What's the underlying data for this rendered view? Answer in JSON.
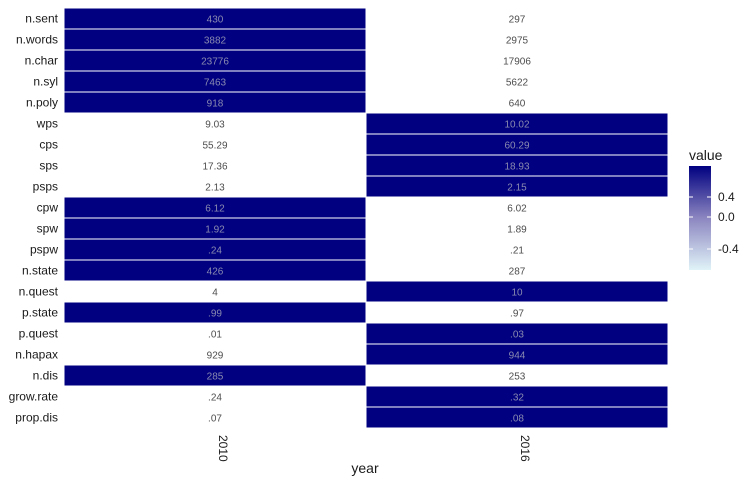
{
  "chart_data": {
    "type": "heatmap",
    "xlabel": "year",
    "ylabel": "",
    "columns": [
      "2010",
      "2016"
    ],
    "rows": [
      {
        "label": "n.sent",
        "values": [
          "430",
          "297"
        ],
        "highlight": [
          true,
          false
        ]
      },
      {
        "label": "n.words",
        "values": [
          "3882",
          "2975"
        ],
        "highlight": [
          true,
          false
        ]
      },
      {
        "label": "n.char",
        "values": [
          "23776",
          "17906"
        ],
        "highlight": [
          true,
          false
        ]
      },
      {
        "label": "n.syl",
        "values": [
          "7463",
          "5622"
        ],
        "highlight": [
          true,
          false
        ]
      },
      {
        "label": "n.poly",
        "values": [
          "918",
          "640"
        ],
        "highlight": [
          true,
          false
        ]
      },
      {
        "label": "wps",
        "values": [
          "9.03",
          "10.02"
        ],
        "highlight": [
          false,
          true
        ]
      },
      {
        "label": "cps",
        "values": [
          "55.29",
          "60.29"
        ],
        "highlight": [
          false,
          true
        ]
      },
      {
        "label": "sps",
        "values": [
          "17.36",
          "18.93"
        ],
        "highlight": [
          false,
          true
        ]
      },
      {
        "label": "psps",
        "values": [
          "2.13",
          "2.15"
        ],
        "highlight": [
          false,
          true
        ]
      },
      {
        "label": "cpw",
        "values": [
          "6.12",
          "6.02"
        ],
        "highlight": [
          true,
          false
        ]
      },
      {
        "label": "spw",
        "values": [
          "1.92",
          "1.89"
        ],
        "highlight": [
          true,
          false
        ]
      },
      {
        "label": "pspw",
        "values": [
          ".24",
          ".21"
        ],
        "highlight": [
          true,
          false
        ]
      },
      {
        "label": "n.state",
        "values": [
          "426",
          "287"
        ],
        "highlight": [
          true,
          false
        ]
      },
      {
        "label": "n.quest",
        "values": [
          "4",
          "10"
        ],
        "highlight": [
          false,
          true
        ]
      },
      {
        "label": "p.state",
        "values": [
          ".99",
          ".97"
        ],
        "highlight": [
          true,
          false
        ]
      },
      {
        "label": "p.quest",
        "values": [
          ".01",
          ".03"
        ],
        "highlight": [
          false,
          true
        ]
      },
      {
        "label": "n.hapax",
        "values": [
          "929",
          "944"
        ],
        "highlight": [
          false,
          true
        ]
      },
      {
        "label": "n.dis",
        "values": [
          "285",
          "253"
        ],
        "highlight": [
          true,
          false
        ]
      },
      {
        "label": "grow.rate",
        "values": [
          ".24",
          ".32"
        ],
        "highlight": [
          false,
          true
        ]
      },
      {
        "label": "prop.dis",
        "values": [
          ".07",
          ".08"
        ],
        "highlight": [
          false,
          true
        ]
      }
    ],
    "legend": {
      "title": "value",
      "ticks": [
        "0.4",
        "0.0",
        "-0.4"
      ],
      "placement": "right",
      "high_color": "#000080",
      "low_color": "#e0f3f8"
    },
    "colors": {
      "high": "#000080",
      "low": "#ffffff",
      "high_text": "#8a8ab0",
      "low_text": "#4d4d4d"
    },
    "grid": false
  }
}
